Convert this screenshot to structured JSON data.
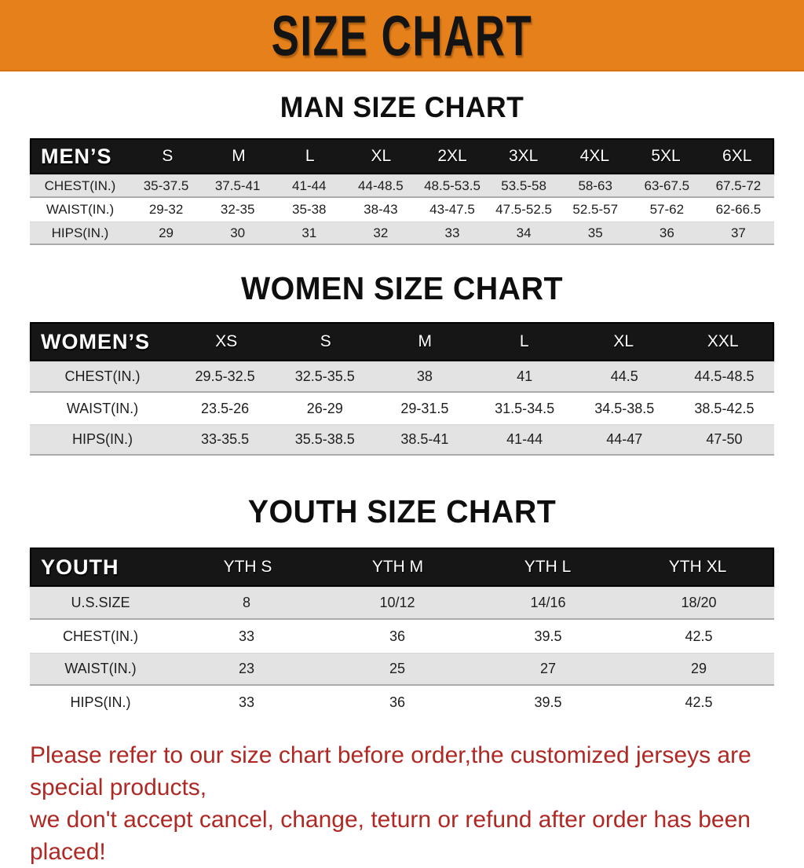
{
  "banner": {
    "title": "SIZE CHART",
    "bg_color": "#E6801A",
    "text_color": "#141414"
  },
  "sections": [
    {
      "heading": "MAN SIZE CHART",
      "header": {
        "label": "MEN’S",
        "columns": [
          "S",
          "M",
          "L",
          "XL",
          "2XL",
          "3XL",
          "4XL",
          "5XL",
          "6XL"
        ]
      },
      "rows": [
        {
          "label": "CHEST(IN.)",
          "values": [
            "35-37.5",
            "37.5-41",
            "41-44",
            "44-48.5",
            "48.5-53.5",
            "53.5-58",
            "58-63",
            "63-67.5",
            "67.5-72"
          ]
        },
        {
          "label": "WAIST(IN.)",
          "values": [
            "29-32",
            "32-35",
            "35-38",
            "38-43",
            "43-47.5",
            "47.5-52.5",
            "52.5-57",
            "57-62",
            "62-66.5"
          ]
        },
        {
          "label": "HIPS(IN.)",
          "values": [
            "29",
            "30",
            "31",
            "32",
            "33",
            "34",
            "35",
            "36",
            "37"
          ]
        }
      ]
    },
    {
      "heading": "WOMEN SIZE CHART",
      "header": {
        "label": "WOMEN’S",
        "columns": [
          "XS",
          "S",
          "M",
          "L",
          "XL",
          "XXL"
        ]
      },
      "rows": [
        {
          "label": "CHEST(IN.)",
          "values": [
            "29.5-32.5",
            "32.5-35.5",
            "38",
            "41",
            "44.5",
            "44.5-48.5"
          ]
        },
        {
          "label": "WAIST(IN.)",
          "values": [
            "23.5-26",
            "26-29",
            "29-31.5",
            "31.5-34.5",
            "34.5-38.5",
            "38.5-42.5"
          ]
        },
        {
          "label": "HIPS(IN.)",
          "values": [
            "33-35.5",
            "35.5-38.5",
            "38.5-41",
            "41-44",
            "44-47",
            "47-50"
          ]
        }
      ]
    },
    {
      "heading": "YOUTH SIZE CHART",
      "header": {
        "label": "YOUTH",
        "columns": [
          "YTH S",
          "YTH M",
          "YTH L",
          "YTH XL"
        ]
      },
      "rows": [
        {
          "label": "U.S.SIZE",
          "values": [
            "8",
            "10/12",
            "14/16",
            "18/20"
          ]
        },
        {
          "label": "CHEST(IN.)",
          "values": [
            "33",
            "36",
            "39.5",
            "42.5"
          ]
        },
        {
          "label": "WAIST(IN.)",
          "values": [
            "23",
            "25",
            "27",
            "29"
          ]
        },
        {
          "label": "HIPS(IN.)",
          "values": [
            "33",
            "36",
            "39.5",
            "42.5"
          ]
        }
      ]
    }
  ],
  "footer": {
    "line1": "Please refer to our size chart before order,the customized jerseys are special products,",
    "line2": "we don't accept cancel, change, teturn or refund after order has been placed!",
    "text_color": "#B02824"
  }
}
